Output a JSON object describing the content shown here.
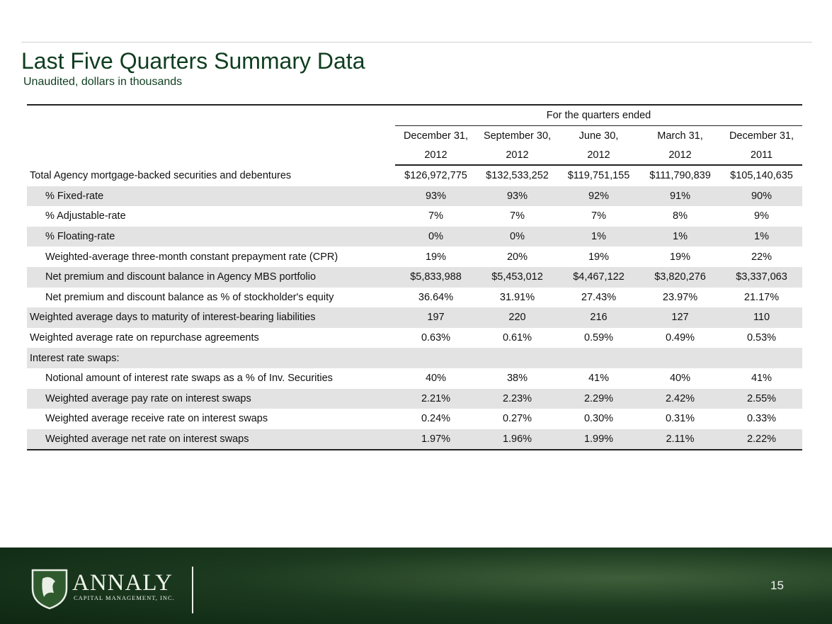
{
  "header": {
    "title": "Last Five Quarters Summary Data",
    "subtitle": "Unaudited, dollars in thousands"
  },
  "table": {
    "group_header": "For the quarters ended",
    "columns": [
      {
        "month": "December 31,",
        "year": "2012"
      },
      {
        "month": "September 30,",
        "year": "2012"
      },
      {
        "month": "June 30,",
        "year": "2012"
      },
      {
        "month": "March 31,",
        "year": "2012"
      },
      {
        "month": "December 31,",
        "year": "2011"
      }
    ],
    "rows": [
      {
        "label": "Total Agency mortgage-backed securities and debentures",
        "indent": false,
        "values": [
          "$126,972,775",
          "$132,533,252",
          "$119,751,155",
          "$111,790,839",
          "$105,140,635"
        ]
      },
      {
        "label": "% Fixed-rate",
        "indent": true,
        "values": [
          "93%",
          "93%",
          "92%",
          "91%",
          "90%"
        ]
      },
      {
        "label": "% Adjustable-rate",
        "indent": true,
        "values": [
          "7%",
          "7%",
          "7%",
          "8%",
          "9%"
        ]
      },
      {
        "label": "% Floating-rate",
        "indent": true,
        "values": [
          "0%",
          "0%",
          "1%",
          "1%",
          "1%"
        ]
      },
      {
        "label": "Weighted-average three-month constant prepayment rate (CPR)",
        "indent": true,
        "values": [
          "19%",
          "20%",
          "19%",
          "19%",
          "22%"
        ]
      },
      {
        "label": "Net premium and discount balance in Agency MBS portfolio",
        "indent": true,
        "values": [
          "$5,833,988",
          "$5,453,012",
          "$4,467,122",
          "$3,820,276",
          "$3,337,063"
        ]
      },
      {
        "label": "Net premium and discount balance as % of stockholder's equity",
        "indent": true,
        "values": [
          "36.64%",
          "31.91%",
          "27.43%",
          "23.97%",
          "21.17%"
        ]
      },
      {
        "label": "Weighted average days to maturity of interest-bearing liabilities",
        "indent": false,
        "values": [
          "197",
          "220",
          "216",
          "127",
          "110"
        ]
      },
      {
        "label": "Weighted average rate on repurchase agreements",
        "indent": false,
        "values": [
          "0.63%",
          "0.61%",
          "0.59%",
          "0.49%",
          "0.53%"
        ]
      },
      {
        "label": "Interest rate swaps:",
        "indent": false
      },
      {
        "label": "Notional amount of interest rate swaps as a % of Inv. Securities",
        "indent": true,
        "values": [
          "40%",
          "38%",
          "41%",
          "40%",
          "41%"
        ]
      },
      {
        "label": "Weighted average pay rate on interest swaps",
        "indent": true,
        "values": [
          "2.21%",
          "2.23%",
          "2.29%",
          "2.42%",
          "2.55%"
        ]
      },
      {
        "label": "Weighted average receive rate on interest swaps",
        "indent": true,
        "values": [
          "0.24%",
          "0.27%",
          "0.30%",
          "0.31%",
          "0.33%"
        ]
      },
      {
        "label": "Weighted average net rate on interest swaps",
        "indent": true,
        "values": [
          "1.97%",
          "1.96%",
          "1.99%",
          "2.11%",
          "2.22%"
        ]
      }
    ]
  },
  "footer": {
    "logo_name": "ANNALY",
    "logo_tagline": "CAPITAL MANAGEMENT, INC.",
    "page_number": "15"
  }
}
